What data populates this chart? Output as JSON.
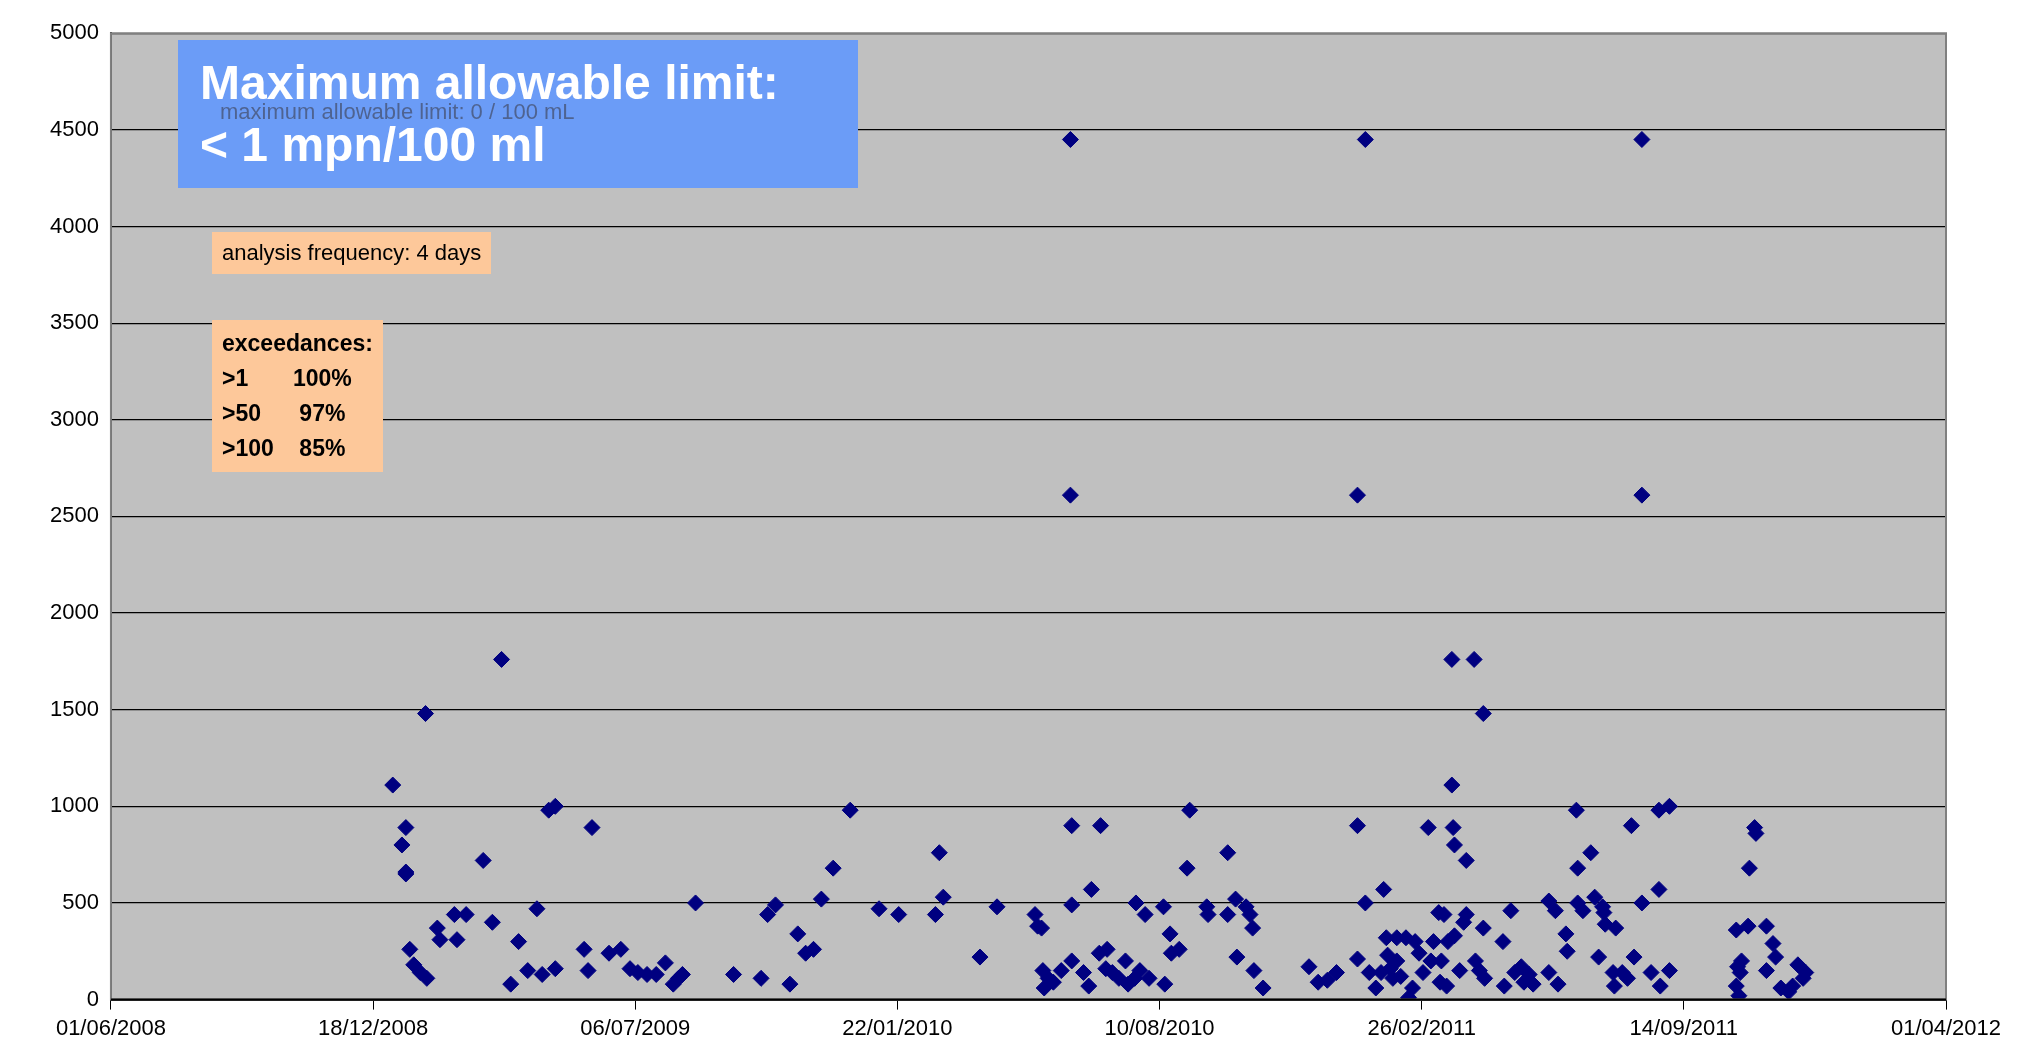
{
  "chart_data": {
    "type": "scatter",
    "annotations": [
      "Maximum allowable limit:\n< 1 mpn/100 ml",
      "maximum allowable limit: 0 / 100 mL",
      "analysis frequency: 4 days",
      "exceedances:\n>1       100%\n>50      97%\n>100    85%"
    ],
    "x": [
      "2009-01-02",
      "2009-01-09",
      "2009-01-12",
      "2009-01-12",
      "2009-01-12",
      "2009-01-15",
      "2009-01-18",
      "2009-01-23",
      "2009-01-27",
      "2009-01-28",
      "2009-02-05",
      "2009-02-07",
      "2009-02-18",
      "2009-02-20",
      "2009-02-27",
      "2009-03-12",
      "2009-03-19",
      "2009-03-26",
      "2009-04-02",
      "2009-04-08",
      "2009-04-15",
      "2009-04-22",
      "2009-04-26",
      "2009-05-01",
      "2009-05-06",
      "2009-05-06",
      "2009-05-28",
      "2009-05-31",
      "2009-06-03",
      "2009-06-16",
      "2009-06-25",
      "2009-07-02",
      "2009-07-08",
      "2009-07-15",
      "2009-07-22",
      "2009-07-29",
      "2009-08-04",
      "2009-08-08",
      "2009-08-11",
      "2009-08-21",
      "2009-09-19",
      "2009-10-10",
      "2009-10-15",
      "2009-10-21",
      "2009-11-01",
      "2009-11-07",
      "2009-11-13",
      "2009-11-19",
      "2009-11-25",
      "2009-12-04",
      "2009-12-17",
      "2010-01-08",
      "2010-01-23",
      "2010-02-20",
      "2010-02-23",
      "2010-02-26",
      "2010-03-26",
      "2010-04-08",
      "2010-05-07",
      "2010-05-09",
      "2010-05-12",
      "2010-05-13",
      "2010-05-14",
      "2010-05-17",
      "2010-05-21",
      "2010-05-27",
      "2010-06-03",
      "2010-06-03",
      "2010-06-04",
      "2010-06-04",
      "2010-06-04",
      "2010-06-13",
      "2010-06-17",
      "2010-06-19",
      "2010-06-25",
      "2010-06-26",
      "2010-06-30",
      "2010-07-01",
      "2010-07-05",
      "2010-07-10",
      "2010-07-15",
      "2010-07-17",
      "2010-07-22",
      "2010-07-23",
      "2010-07-26",
      "2010-07-30",
      "2010-08-02",
      "2010-08-13",
      "2010-08-14",
      "2010-08-18",
      "2010-08-19",
      "2010-08-25",
      "2010-08-31",
      "2010-09-02",
      "2010-09-15",
      "2010-09-16",
      "2010-10-01",
      "2010-10-01",
      "2010-10-07",
      "2010-10-08",
      "2010-10-15",
      "2010-10-18",
      "2010-10-20",
      "2010-10-21",
      "2010-10-28",
      "2010-12-02",
      "2010-12-09",
      "2010-12-16",
      "2010-12-23",
      "2011-01-14",
      "2011-01-08",
      "2011-01-08",
      "2011-01-08",
      "2011-01-14",
      "2011-01-17",
      "2011-01-22",
      "2011-01-26",
      "2011-01-28",
      "2011-01-30",
      "2011-01-31",
      "2011-02-02",
      "2011-02-04",
      "2011-02-07",
      "2011-02-07",
      "2011-02-10",
      "2011-02-14",
      "2011-02-16",
      "2011-02-19",
      "2011-02-21",
      "2011-02-24",
      "2011-02-27",
      "2011-03-03",
      "2011-03-05",
      "2011-03-07",
      "2011-03-11",
      "2011-03-12",
      "2011-03-13",
      "2011-03-15",
      "2011-03-17",
      "2011-03-18",
      "2011-03-21",
      "2011-03-21",
      "2011-03-22",
      "2011-03-23",
      "2011-03-23",
      "2011-03-27",
      "2011-03-30",
      "2011-04-01",
      "2011-04-01",
      "2011-04-07",
      "2011-04-08",
      "2011-04-11",
      "2011-04-14",
      "2011-04-15",
      "2011-04-14",
      "2011-04-29",
      "2011-04-30",
      "2011-05-05",
      "2011-05-08",
      "2011-05-13",
      "2011-05-15",
      "2011-05-19",
      "2011-05-22",
      "2011-06-03",
      "2011-06-03",
      "2011-06-08",
      "2011-06-10",
      "2011-06-16",
      "2011-06-17",
      "2011-06-24",
      "2011-06-25",
      "2011-06-25",
      "2011-06-29",
      "2011-07-05",
      "2011-07-08",
      "2011-07-11",
      "2011-07-14",
      "2011-07-15",
      "2011-07-16",
      "2011-07-22",
      "2011-07-23",
      "2011-07-24",
      "2011-07-29",
      "2011-08-02",
      "2011-08-05",
      "2011-08-07",
      "2011-08-13",
      "2011-08-13",
      "2011-08-13",
      "2011-08-20",
      "2011-08-26",
      "2011-08-26",
      "2011-08-27",
      "2011-09-03",
      "2011-09-03",
      "2011-10-24",
      "2011-10-24",
      "2011-10-25",
      "2011-10-26",
      "2011-10-27",
      "2011-10-28",
      "2011-11-02",
      "2011-11-03",
      "2011-11-07",
      "2011-11-08",
      "2011-11-16",
      "2011-11-16",
      "2011-11-21",
      "2011-11-23",
      "2011-11-27",
      "2011-12-03",
      "2011-12-06",
      "2011-12-10",
      "2011-12-14",
      "2011-12-16"
    ],
    "values": [
      1110,
      800,
      890,
      650,
      660,
      260,
      180,
      140,
      1480,
      110,
      370,
      310,
      440,
      310,
      440,
      720,
      400,
      1760,
      80,
      300,
      150,
      470,
      130,
      980,
      1000,
      160,
      260,
      150,
      890,
      240,
      260,
      160,
      140,
      130,
      130,
      190,
      80,
      110,
      130,
      500,
      130,
      110,
      440,
      490,
      80,
      340,
      240,
      260,
      520,
      680,
      980,
      470,
      440,
      440,
      760,
      530,
      220,
      480,
      440,
      380,
      370,
      150,
      60,
      110,
      90,
      150,
      4450,
      2610,
      900,
      490,
      200,
      140,
      70,
      570,
      240,
      900,
      160,
      260,
      140,
      110,
      200,
      80,
      110,
      500,
      150,
      440,
      110,
      480,
      80,
      340,
      240,
      260,
      680,
      980,
      480,
      440,
      440,
      760,
      520,
      220,
      480,
      440,
      370,
      150,
      60,
      170,
      90,
      100,
      140,
      4450,
      2610,
      900,
      210,
      500,
      140,
      60,
      140,
      570,
      320,
      230,
      160,
      110,
      320,
      200,
      120,
      320,
      10,
      60,
      300,
      240,
      140,
      890,
      200,
      300,
      450,
      90,
      200,
      440,
      70,
      300,
      1760,
      1110,
      890,
      800,
      330,
      150,
      400,
      720,
      440,
      1760,
      200,
      150,
      1480,
      110,
      370,
      300,
      70,
      460,
      140,
      170,
      90,
      130,
      80,
      510,
      140,
      460,
      80,
      340,
      250,
      980,
      680,
      500,
      460,
      760,
      530,
      220,
      480,
      450,
      390,
      140,
      70,
      370,
      140,
      110,
      900,
      220,
      4450,
      2610,
      500,
      140,
      570,
      980,
      70,
      150,
      1000,
      360,
      70,
      170,
      20,
      140,
      200,
      380,
      680,
      890,
      860,
      380,
      150,
      290,
      220,
      60,
      40,
      70,
      180,
      110,
      140
    ],
    "color": "#000080",
    "marker": "diamond",
    "legend": false,
    "grid": "y",
    "xlim": [
      "2008-06-01",
      "2012-04-01"
    ],
    "xticks": [
      {
        "value": "2008-06-01",
        "label": "01/06/2008"
      },
      {
        "value": "2008-12-18",
        "label": "18/12/2008"
      },
      {
        "value": "2009-07-06",
        "label": "06/07/2009"
      },
      {
        "value": "2010-01-22",
        "label": "22/01/2010"
      },
      {
        "value": "2010-08-10",
        "label": "10/08/2010"
      },
      {
        "value": "2011-02-26",
        "label": "26/02/2011"
      },
      {
        "value": "2011-09-14",
        "label": "14/09/2011"
      },
      {
        "value": "2012-04-01",
        "label": "01/04/2012"
      }
    ],
    "ylim": [
      0,
      5000
    ],
    "yticks": [
      0,
      500,
      1000,
      1500,
      2000,
      2500,
      3000,
      3500,
      4000,
      4500,
      5000
    ]
  }
}
